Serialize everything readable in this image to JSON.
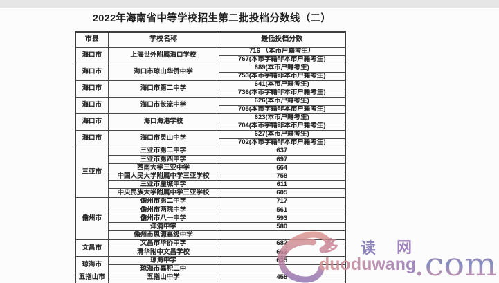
{
  "page": {
    "title": "2022年海南省中等学校招生第二批投档分数线（二）"
  },
  "table": {
    "headers": [
      "市县",
      "学校名称",
      "最低投档分数"
    ],
    "groups": [
      {
        "county": "海口市",
        "schools": [
          {
            "name": "上海世外附属海口学校",
            "scores": [
              "716 （本市户籍考生）",
              "767(本市学籍非本市户籍考生)"
            ]
          }
        ]
      },
      {
        "county": "海口市",
        "schools": [
          {
            "name": "海口市琼山华侨中学",
            "scores": [
              "689(本市户籍考生)",
              "753(本市学籍非本市户籍考生)"
            ]
          }
        ]
      },
      {
        "county": "海口市",
        "schools": [
          {
            "name": "海口市第二中学",
            "scores": [
              "641(本市户籍考生)",
              "736(本市学籍非本市户籍考生)"
            ]
          }
        ]
      },
      {
        "county": "海口市",
        "schools": [
          {
            "name": "海口市长流中学",
            "scores": [
              "626(本市户籍考生)",
              "705(本市学籍非本市户籍考生)"
            ]
          }
        ]
      },
      {
        "county": "海口市",
        "schools": [
          {
            "name": "海口海港学校",
            "scores": [
              "623(本市户籍考生)",
              "704(本市学籍非本市户籍考生)"
            ]
          }
        ]
      },
      {
        "county": "海口市",
        "schools": [
          {
            "name": "海口市灵山中学",
            "scores": [
              "627(本市户籍考生)",
              "702(本市学籍非本市户籍考生)"
            ]
          }
        ]
      },
      {
        "county": "三亚市",
        "schools": [
          {
            "name": "三亚市第二中学",
            "scores": [
              "637"
            ]
          },
          {
            "name": "三亚市第四中学",
            "scores": [
              "697"
            ]
          },
          {
            "name": "西南大学三亚中学",
            "scores": [
              "664"
            ]
          },
          {
            "name": "中国人民大学附属中学三亚学校",
            "scores": [
              "758"
            ]
          },
          {
            "name": "三亚市崖城中学",
            "scores": [
              "611"
            ]
          },
          {
            "name": "中央民族大学附属中学三亚学校",
            "scores": [
              "605"
            ]
          }
        ]
      },
      {
        "county": "儋州市",
        "schools": [
          {
            "name": "儋州市第二中学",
            "scores": [
              "717"
            ]
          },
          {
            "name": "儋州市两院中学",
            "scores": [
              "561"
            ]
          },
          {
            "name": "儋州市八一中学",
            "scores": [
              "593"
            ]
          },
          {
            "name": "洋浦中学",
            "scores": [
              "580"
            ]
          },
          {
            "name": "儋州市思源高级中学",
            "scores": [
              ""
            ]
          }
        ]
      },
      {
        "county": "文昌市",
        "schools": [
          {
            "name": "文昌市华侨中学",
            "scores": [
              "682"
            ]
          },
          {
            "name": "清华附中文昌学校",
            "scores": [
              "662"
            ]
          }
        ]
      },
      {
        "county": "琼海市",
        "schools": [
          {
            "name": "琼海中学",
            "scores": [
              "635"
            ]
          },
          {
            "name": "琼海市嘉积二中",
            "scores": [
              ""
            ]
          }
        ]
      },
      {
        "county": "五指山市",
        "schools": [
          {
            "name": "五指山中学",
            "scores": [
              "458"
            ]
          }
        ]
      }
    ]
  },
  "watermark": {
    "char1": "多",
    "char2": "读",
    "char3": "网",
    "latin": "duoduwang",
    "suffix": ".com",
    "color_pink": "#d98e8c",
    "color_purple": "#8f74b5",
    "color_blue": "#6d7ab8"
  }
}
